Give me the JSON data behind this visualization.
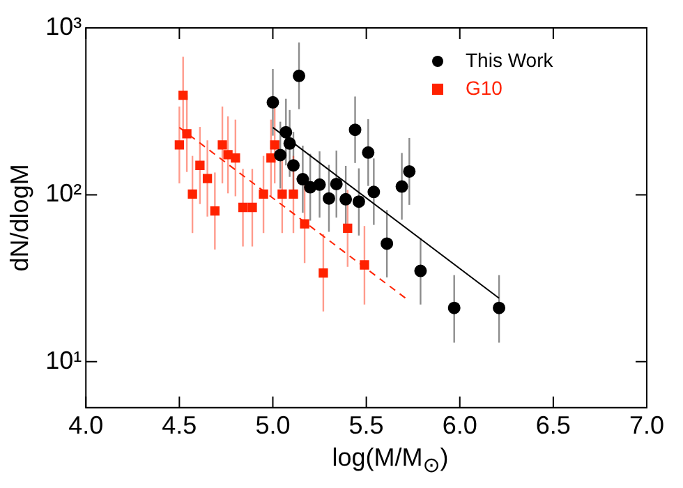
{
  "chart_data": {
    "type": "scatter",
    "xlabel": "log(M/M$_{⊙}$)",
    "ylabel": "dN/dlogM",
    "log": "y",
    "xlim": [
      4.0,
      7.0
    ],
    "xticks": [
      {
        "value": 4,
        "label": "4.0"
      },
      {
        "value": 4.5,
        "label": "4.5"
      },
      {
        "value": 5,
        "label": "5.0"
      },
      {
        "value": 5.5,
        "label": "5.5"
      },
      {
        "value": 6,
        "label": "6.0"
      },
      {
        "value": 6.5,
        "label": "6.5"
      },
      {
        "value": 7,
        "label": "7.0"
      }
    ],
    "ylim": [
      5.3,
      1000
    ],
    "yticks": [
      {
        "value": 10,
        "label": "10¹"
      },
      {
        "value": 100,
        "label": "10²"
      },
      {
        "value": 1000,
        "label": "10³"
      }
    ],
    "grid": false,
    "legend": "top right",
    "series": [
      {
        "name": "This Work",
        "color": "#000000",
        "marker": "circle",
        "x": [
          5.0,
          5.04,
          5.07,
          5.09,
          5.11,
          5.14,
          5.16,
          5.2,
          5.25,
          5.3,
          5.34,
          5.39,
          5.44,
          5.46,
          5.51,
          5.54,
          5.61,
          5.69,
          5.73,
          5.79,
          5.97,
          6.21
        ],
        "values": [
          358,
          173,
          237,
          203,
          150,
          516,
          124,
          111,
          115,
          95,
          116,
          94,
          245,
          91,
          179,
          104,
          51,
          112,
          138,
          35,
          21,
          21
        ],
        "errors": [
          [
            226,
            567
          ],
          [
            109,
            274
          ],
          [
            150,
            376
          ],
          [
            128,
            322
          ],
          [
            95,
            238
          ],
          [
            326,
            818
          ],
          [
            78,
            197
          ],
          [
            70,
            176
          ],
          [
            73,
            182
          ],
          [
            60,
            151
          ],
          [
            73,
            184
          ],
          [
            59,
            149
          ],
          [
            155,
            388
          ],
          [
            57,
            144
          ],
          [
            113,
            284
          ],
          [
            66,
            165
          ],
          [
            32,
            81
          ],
          [
            71,
            178
          ],
          [
            87,
            219
          ],
          [
            22,
            55
          ],
          [
            13,
            33
          ],
          [
            13,
            33
          ]
        ]
      },
      {
        "name": "G10",
        "color": "#ff2200",
        "marker": "square",
        "x": [
          4.5,
          4.52,
          4.54,
          4.57,
          4.61,
          4.65,
          4.69,
          4.73,
          4.76,
          4.8,
          4.84,
          4.89,
          4.95,
          4.99,
          5.01,
          5.05,
          5.11,
          5.17,
          5.27,
          5.4,
          5.49
        ],
        "values": [
          199,
          395,
          232,
          101,
          150,
          125,
          80,
          199,
          174,
          166,
          84,
          84,
          101,
          166,
          199,
          101,
          101,
          67,
          34,
          63,
          38
        ],
        "errors": [
          [
            117,
            338
          ],
          [
            233,
            671
          ],
          [
            137,
            394
          ],
          [
            59,
            171
          ],
          [
            88,
            255
          ],
          [
            74,
            212
          ],
          [
            47,
            136
          ],
          [
            117,
            338
          ],
          [
            102,
            295
          ],
          [
            98,
            282
          ],
          [
            49,
            143
          ],
          [
            49,
            143
          ],
          [
            59,
            171
          ],
          [
            98,
            282
          ],
          [
            117,
            338
          ],
          [
            59,
            171
          ],
          [
            59,
            171
          ],
          [
            39,
            114
          ],
          [
            20,
            58
          ],
          [
            37,
            107
          ],
          [
            22,
            65
          ]
        ]
      },
      {
        "type": "line",
        "color": "#000000",
        "line_style": "solid",
        "marker": "none",
        "x": [
          5.0,
          6.21
        ],
        "values": [
          253,
          24
        ]
      },
      {
        "type": "line",
        "color": "#ff2200",
        "line_style": "dashed",
        "marker": "none",
        "x": [
          4.5,
          5.71
        ],
        "values": [
          253,
          24
        ]
      }
    ]
  }
}
